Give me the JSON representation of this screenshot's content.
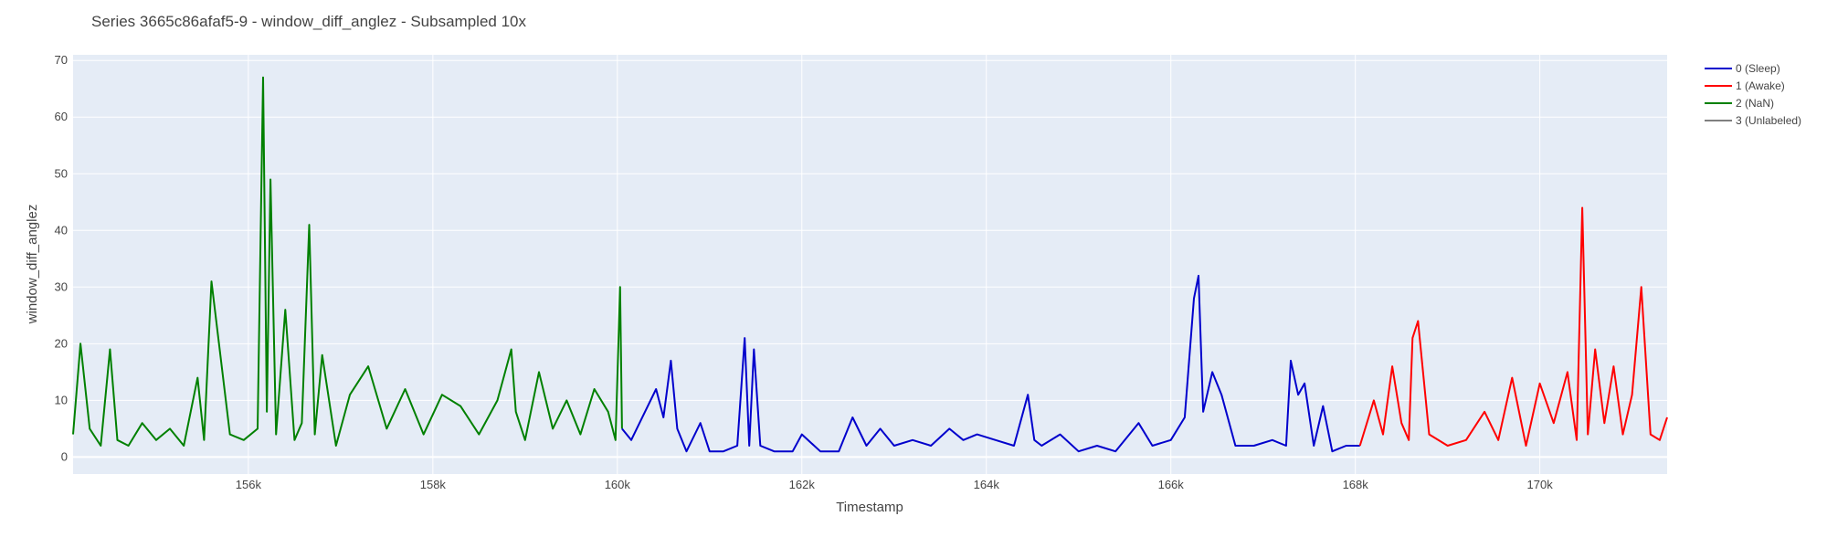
{
  "chart_data": {
    "type": "line",
    "title": "Series 3665c86afaf5-9 - window_diff_anglez - Subsampled 10x",
    "xlabel": "Timestamp",
    "ylabel": "window_diff_anglez",
    "xlim": [
      154100,
      171380
    ],
    "ylim": [
      -3,
      71
    ],
    "x_ticks": [
      156000,
      158000,
      160000,
      162000,
      164000,
      166000,
      168000,
      170000
    ],
    "x_tick_labels": [
      "156k",
      "158k",
      "160k",
      "162k",
      "164k",
      "166k",
      "168k",
      "170k"
    ],
    "y_ticks": [
      0,
      10,
      20,
      30,
      40,
      50,
      60,
      70
    ],
    "y_tick_labels": [
      "0",
      "10",
      "20",
      "30",
      "40",
      "50",
      "60",
      "70"
    ],
    "grid": true,
    "legend_position": "top-right",
    "background_color": "#e5ecf6",
    "series": [
      {
        "name": "0 (Sleep)",
        "color": "#0000cc",
        "x": [
          160050,
          160150,
          160300,
          160420,
          160500,
          160580,
          160650,
          160750,
          160900,
          161000,
          161150,
          161300,
          161380,
          161430,
          161480,
          161550,
          161700,
          161900,
          162000,
          162200,
          162400,
          162550,
          162700,
          162850,
          163000,
          163200,
          163400,
          163600,
          163750,
          163900,
          164100,
          164300,
          164450,
          164520,
          164600,
          164800,
          165000,
          165200,
          165400,
          165550,
          165650,
          165800,
          166000,
          166150,
          166250,
          166300,
          166350,
          166450,
          166550,
          166700,
          166900,
          167100,
          167250,
          167300,
          167380,
          167450,
          167550,
          167650,
          167750,
          167900,
          168050
        ],
        "y": [
          5,
          3,
          8,
          12,
          7,
          17,
          5,
          1,
          6,
          1,
          1,
          2,
          21,
          2,
          19,
          2,
          1,
          1,
          4,
          1,
          1,
          7,
          2,
          5,
          2,
          3,
          2,
          5,
          3,
          4,
          3,
          2,
          11,
          3,
          2,
          4,
          1,
          2,
          1,
          4,
          6,
          2,
          3,
          7,
          28,
          32,
          8,
          15,
          11,
          2,
          2,
          3,
          2,
          17,
          11,
          13,
          2,
          9,
          1,
          2,
          2
        ]
      },
      {
        "name": "1 (Awake)",
        "color": "#ff0000",
        "x": [
          168050,
          168200,
          168300,
          168400,
          168500,
          168580,
          168620,
          168680,
          168800,
          169000,
          169200,
          169400,
          169550,
          169700,
          169850,
          170000,
          170150,
          170300,
          170400,
          170460,
          170520,
          170600,
          170700,
          170800,
          170900,
          171000,
          171100,
          171200,
          171300,
          171380
        ],
        "y": [
          2,
          10,
          4,
          16,
          6,
          3,
          21,
          24,
          4,
          2,
          3,
          8,
          3,
          14,
          2,
          13,
          6,
          15,
          3,
          44,
          4,
          19,
          6,
          16,
          4,
          11,
          30,
          4,
          3,
          7
        ]
      },
      {
        "name": "2 (NaN)",
        "color": "#008000",
        "x": [
          154100,
          154180,
          154280,
          154400,
          154500,
          154580,
          154700,
          154850,
          155000,
          155150,
          155300,
          155450,
          155520,
          155600,
          155800,
          155950,
          156100,
          156160,
          156200,
          156240,
          156300,
          156400,
          156500,
          156580,
          156660,
          156720,
          156800,
          156950,
          157100,
          157300,
          157500,
          157700,
          157900,
          158100,
          158300,
          158500,
          158700,
          158850,
          158900,
          159000,
          159150,
          159300,
          159450,
          159600,
          159750,
          159900,
          159980,
          160030,
          160050
        ],
        "y": [
          4,
          20,
          5,
          2,
          19,
          3,
          2,
          6,
          3,
          5,
          2,
          14,
          3,
          31,
          4,
          3,
          5,
          67,
          8,
          49,
          4,
          26,
          3,
          6,
          41,
          4,
          18,
          2,
          11,
          16,
          5,
          12,
          4,
          11,
          9,
          4,
          10,
          19,
          8,
          3,
          15,
          5,
          10,
          4,
          12,
          8,
          3,
          30,
          5
        ]
      },
      {
        "name": "3 (Unlabeled)",
        "color": "#808080",
        "x": [],
        "y": []
      }
    ]
  }
}
